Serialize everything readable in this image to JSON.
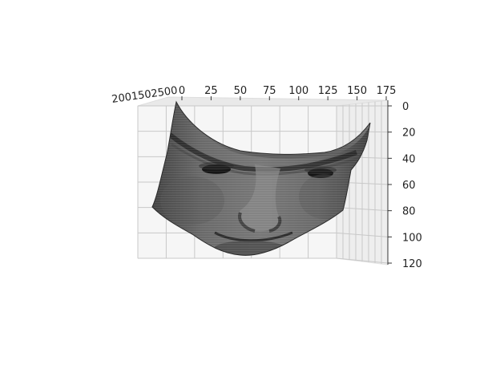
{
  "chart_data": {
    "type": "surface3d",
    "title": "",
    "xlabel": "",
    "ylabel": "",
    "zlabel": "",
    "top_axis": {
      "ticks": [
        "0",
        "25",
        "50",
        "75",
        "100",
        "125",
        "150",
        "175"
      ],
      "range": [
        0,
        175
      ]
    },
    "right_axis": {
      "ticks": [
        "0",
        "20",
        "40",
        "60",
        "80",
        "100",
        "120"
      ],
      "range": [
        0,
        120
      ],
      "inverted": true
    },
    "depth_axis": {
      "ticks": [
        "200",
        "150",
        "100",
        "50",
        "0"
      ],
      "overlapping_ticks_rendered_as": "2001502500"
    },
    "surface": {
      "subject": "3D face mesh",
      "colormap": "gray",
      "visible_features": [
        "forehead",
        "eyebrows",
        "left eye",
        "right eye",
        "nose",
        "mouth",
        "chin"
      ]
    },
    "grid": true,
    "pane_color": "#f2f2f2",
    "grid_color": "#c8c8c8"
  }
}
